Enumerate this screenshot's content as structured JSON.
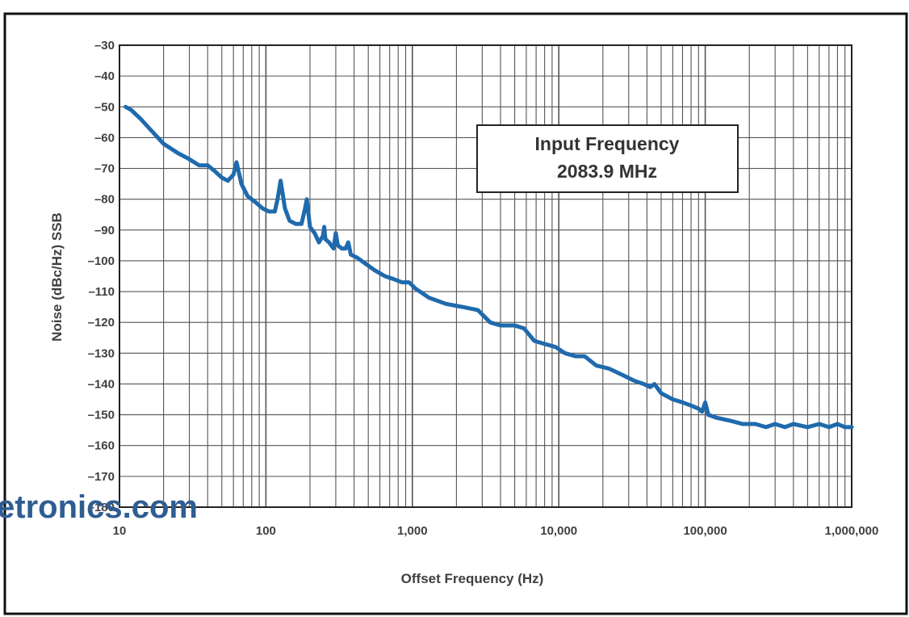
{
  "watermark": "etronics.com",
  "colors": {
    "line": "#1f6aad",
    "grid": "#555555",
    "text": "#404040",
    "watermark": "#2f5d92"
  },
  "chart_data": {
    "type": "line",
    "title": "",
    "xlabel": "Offset Frequency (Hz)",
    "ylabel": "Noise (dBc/Hz) SSB",
    "x_scale": "log",
    "xlim": [
      10,
      1000000
    ],
    "ylim": [
      -180,
      -30
    ],
    "grid": true,
    "x_ticks": [
      {
        "value": 10,
        "label": "10"
      },
      {
        "value": 100,
        "label": "100"
      },
      {
        "value": 1000,
        "label": "1,000"
      },
      {
        "value": 10000,
        "label": "10,000"
      },
      {
        "value": 100000,
        "label": "100,000"
      },
      {
        "value": 1000000,
        "label": "1,000,000"
      }
    ],
    "y_ticks": [
      {
        "value": -30,
        "label": "–30"
      },
      {
        "value": -40,
        "label": "–40"
      },
      {
        "value": -50,
        "label": "–50"
      },
      {
        "value": -60,
        "label": "–60"
      },
      {
        "value": -70,
        "label": "–70"
      },
      {
        "value": -80,
        "label": "–80"
      },
      {
        "value": -90,
        "label": "–90"
      },
      {
        "value": -100,
        "label": "–100"
      },
      {
        "value": -110,
        "label": "–110"
      },
      {
        "value": -120,
        "label": "–120"
      },
      {
        "value": -130,
        "label": "–130"
      },
      {
        "value": -140,
        "label": "–140"
      },
      {
        "value": -150,
        "label": "–150"
      },
      {
        "value": -160,
        "label": "–160"
      },
      {
        "value": -170,
        "label": "–170"
      },
      {
        "value": -180,
        "label": "–180"
      }
    ],
    "annotation": {
      "lines": [
        "Input Frequency",
        "2083.9 MHz"
      ]
    },
    "series": [
      {
        "x": [
          11,
          12,
          14,
          16,
          20,
          25,
          30,
          35,
          40,
          45,
          50,
          55,
          60,
          63,
          68,
          75,
          85,
          95,
          105,
          115,
          120,
          126,
          135,
          145,
          160,
          175,
          185,
          190,
          200,
          215,
          230,
          245,
          250,
          255,
          270,
          290,
          300,
          310,
          330,
          350,
          365,
          380,
          420,
          480,
          550,
          650,
          750,
          850,
          950,
          1050,
          1300,
          1700,
          2200,
          2800,
          3400,
          4000,
          5000,
          5800,
          6800,
          8000,
          9500,
          11000,
          13000,
          15000,
          18000,
          22000,
          27000,
          33000,
          38000,
          42000,
          45000,
          50000,
          60000,
          70000,
          80000,
          90000,
          95000,
          100000,
          105000,
          120000,
          150000,
          180000,
          220000,
          260000,
          300000,
          350000,
          400000,
          500000,
          600000,
          700000,
          800000,
          900000,
          1000000
        ],
        "y": [
          -50,
          -51,
          -54,
          -57,
          -62,
          -65,
          -67,
          -69,
          -69,
          -71,
          -73,
          -74,
          -72,
          -68,
          -75,
          -79,
          -81,
          -83,
          -84,
          -84,
          -80,
          -74,
          -83,
          -87,
          -88,
          -88,
          -83,
          -80,
          -89,
          -91,
          -94,
          -92,
          -89,
          -93,
          -94,
          -96,
          -91,
          -95,
          -96,
          -96,
          -94,
          -98,
          -99,
          -101,
          -103,
          -105,
          -106,
          -107,
          -107,
          -109,
          -112,
          -114,
          -115,
          -116,
          -120,
          -121,
          -121,
          -122,
          -126,
          -127,
          -128,
          -130,
          -131,
          -131,
          -134,
          -135,
          -137,
          -139,
          -140,
          -141,
          -140,
          -143,
          -145,
          -146,
          -147,
          -148,
          -149,
          -146,
          -150,
          -151,
          -152,
          -153,
          -153,
          -154,
          -153,
          -154,
          -153,
          -154,
          -153,
          -154,
          -153,
          -154,
          -154
        ]
      }
    ]
  }
}
